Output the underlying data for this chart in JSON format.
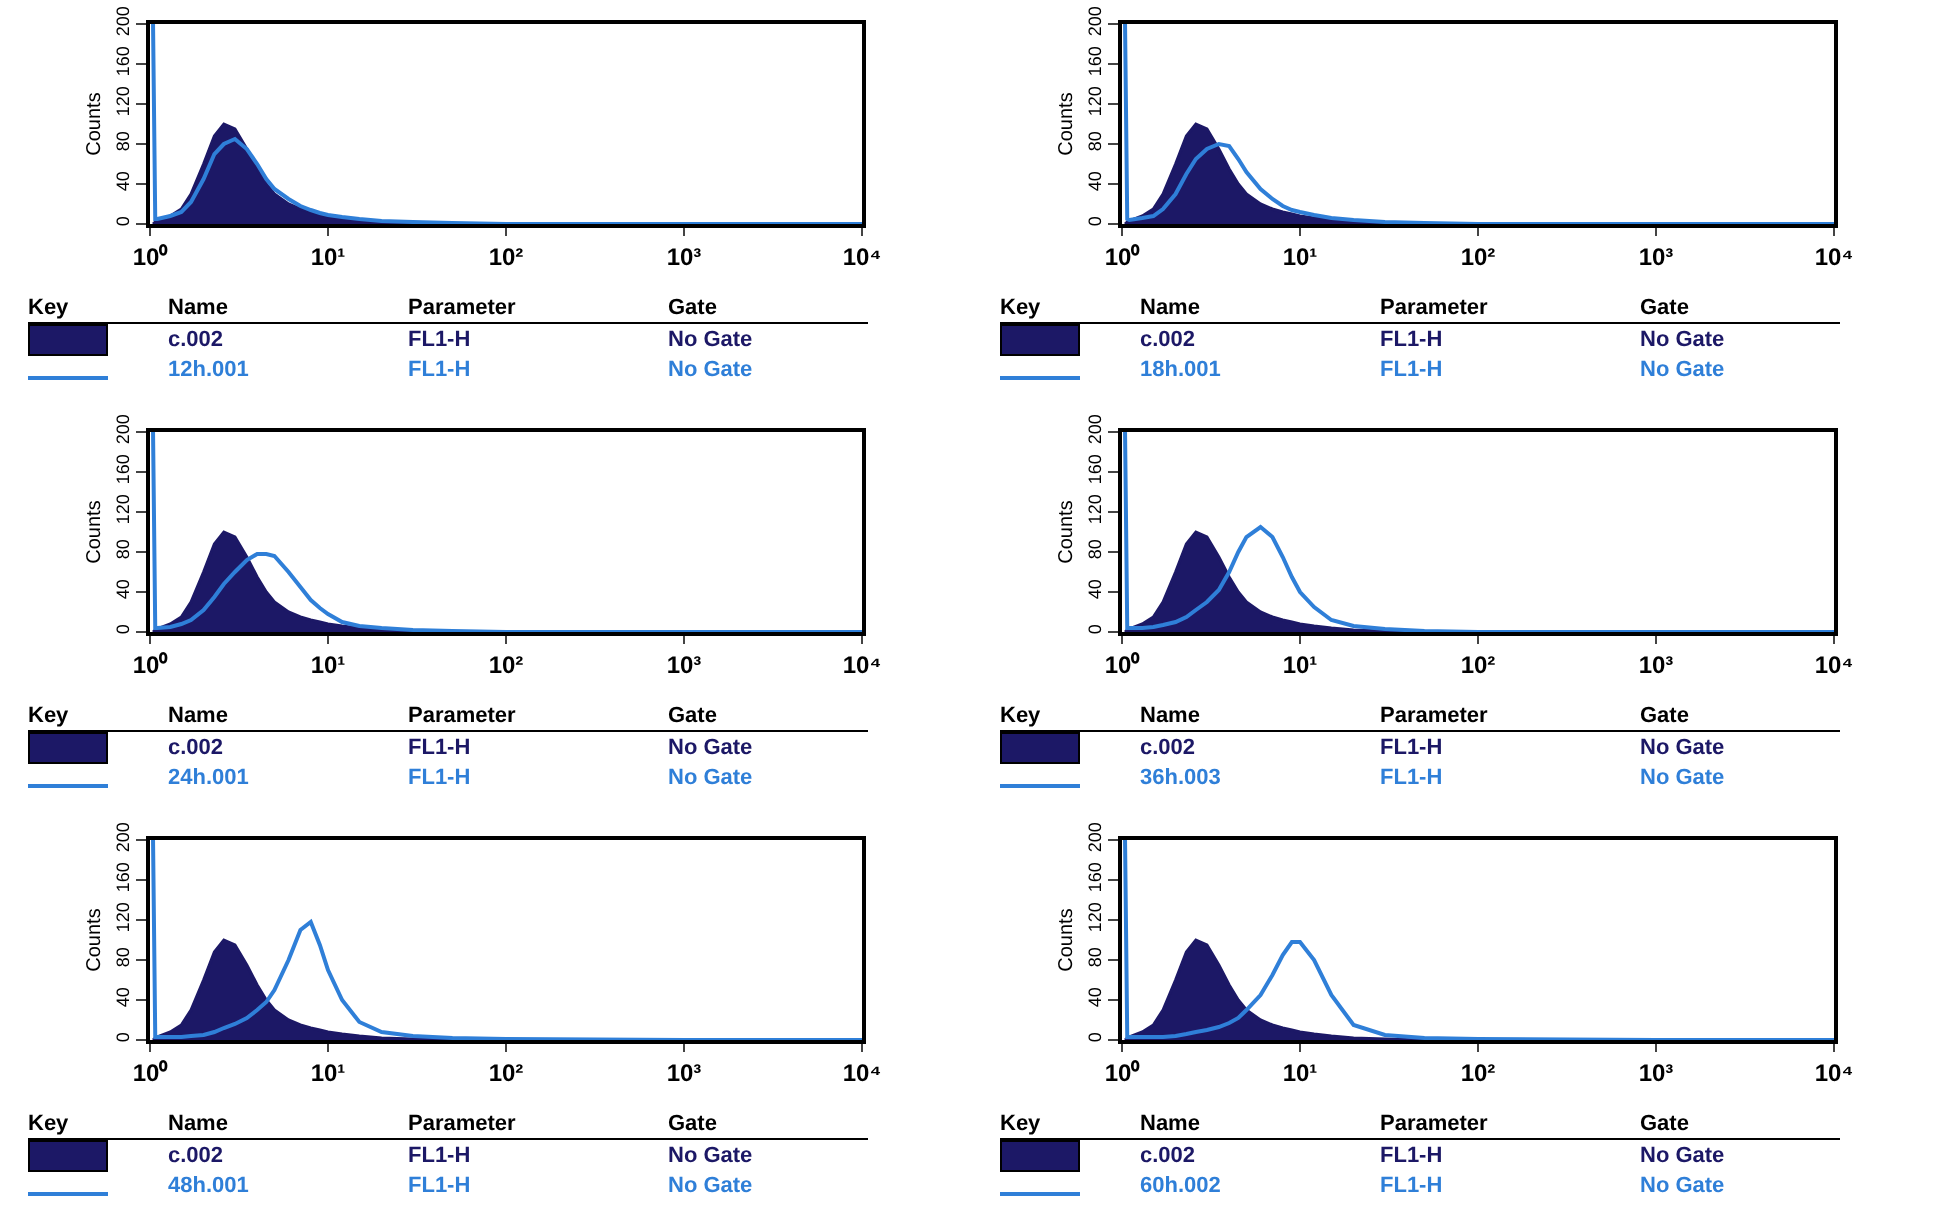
{
  "chart_data": [
    {
      "type": "area",
      "ylabel": "Counts",
      "xlim": [
        1,
        10000
      ],
      "ylim": [
        0,
        200
      ],
      "log": "x",
      "legend": "bottom",
      "grid": false,
      "line_style": "solid",
      "xticks": [
        {
          "value": 1,
          "label": "10⁰"
        },
        {
          "value": 10,
          "label": "10¹"
        },
        {
          "value": 100,
          "label": "10²"
        },
        {
          "value": 1000,
          "label": "10³"
        },
        {
          "value": 10000,
          "label": "10⁴"
        }
      ],
      "yticks": [
        0,
        40,
        80,
        120,
        160,
        200
      ],
      "annotations": [
        "Key",
        "Name",
        "Parameter",
        "Gate",
        "FL1-H",
        "No Gate",
        "FL1-H",
        "No Gate"
      ],
      "x": [
        1.04,
        1.07,
        1.1,
        1.3,
        1.5,
        1.7,
        2,
        2.3,
        2.6,
        3,
        3.5,
        4,
        4.5,
        5,
        6,
        7,
        8,
        9,
        10,
        12,
        15,
        20,
        30,
        50,
        100,
        1000,
        10000
      ],
      "series": [
        {
          "name": "c.002",
          "type": "area",
          "color": "#1c1866",
          "values": [
            0,
            2,
            3,
            8,
            15,
            30,
            60,
            88,
            100,
            95,
            75,
            55,
            40,
            30,
            20,
            15,
            12,
            10,
            8,
            6,
            4,
            2,
            1,
            0,
            0,
            0,
            0
          ]
        },
        {
          "name": "12h.001",
          "type": "line",
          "color": "#2f7fd8",
          "values": [
            200,
            5,
            5,
            8,
            12,
            22,
            45,
            70,
            80,
            85,
            75,
            60,
            45,
            35,
            25,
            18,
            14,
            11,
            9,
            7,
            5,
            3,
            2,
            1,
            0,
            0,
            0
          ]
        }
      ]
    },
    {
      "type": "area",
      "ylabel": "Counts",
      "xlim": [
        1,
        10000
      ],
      "ylim": [
        0,
        200
      ],
      "log": "x",
      "legend": "bottom",
      "grid": false,
      "line_style": "solid",
      "xticks": [
        {
          "value": 1,
          "label": "10⁰"
        },
        {
          "value": 10,
          "label": "10¹"
        },
        {
          "value": 100,
          "label": "10²"
        },
        {
          "value": 1000,
          "label": "10³"
        },
        {
          "value": 10000,
          "label": "10⁴"
        }
      ],
      "yticks": [
        0,
        40,
        80,
        120,
        160,
        200
      ],
      "annotations": [
        "Key",
        "Name",
        "Parameter",
        "Gate",
        "FL1-H",
        "No Gate",
        "FL1-H",
        "No Gate"
      ],
      "x": [
        1.04,
        1.07,
        1.1,
        1.3,
        1.5,
        1.7,
        2,
        2.3,
        2.6,
        3,
        3.5,
        4,
        4.5,
        5,
        6,
        7,
        8,
        9,
        10,
        12,
        15,
        20,
        30,
        50,
        100,
        1000,
        10000
      ],
      "series": [
        {
          "name": "c.002",
          "type": "area",
          "color": "#1c1866",
          "values": [
            0,
            2,
            3,
            8,
            15,
            30,
            60,
            88,
            100,
            95,
            75,
            55,
            40,
            30,
            20,
            15,
            12,
            10,
            8,
            6,
            4,
            2,
            1,
            0,
            0,
            0,
            0
          ]
        },
        {
          "name": "18h.001",
          "type": "line",
          "color": "#2f7fd8",
          "values": [
            200,
            5,
            4,
            6,
            8,
            15,
            30,
            50,
            65,
            75,
            80,
            78,
            65,
            52,
            35,
            25,
            18,
            14,
            12,
            9,
            6,
            4,
            2,
            1,
            0,
            0,
            0
          ]
        }
      ]
    },
    {
      "type": "area",
      "ylabel": "Counts",
      "xlim": [
        1,
        10000
      ],
      "ylim": [
        0,
        200
      ],
      "log": "x",
      "legend": "bottom",
      "grid": false,
      "line_style": "solid",
      "xticks": [
        {
          "value": 1,
          "label": "10⁰"
        },
        {
          "value": 10,
          "label": "10¹"
        },
        {
          "value": 100,
          "label": "10²"
        },
        {
          "value": 1000,
          "label": "10³"
        },
        {
          "value": 10000,
          "label": "10⁴"
        }
      ],
      "yticks": [
        0,
        40,
        80,
        120,
        160,
        200
      ],
      "annotations": [
        "Key",
        "Name",
        "Parameter",
        "Gate",
        "FL1-H",
        "No Gate",
        "FL1-H",
        "No Gate"
      ],
      "x": [
        1.04,
        1.07,
        1.1,
        1.3,
        1.5,
        1.7,
        2,
        2.3,
        2.6,
        3,
        3.5,
        4,
        4.5,
        5,
        6,
        7,
        8,
        9,
        10,
        12,
        15,
        20,
        30,
        50,
        100,
        1000,
        10000
      ],
      "series": [
        {
          "name": "c.002",
          "type": "area",
          "color": "#1c1866",
          "values": [
            0,
            2,
            3,
            8,
            15,
            30,
            60,
            88,
            100,
            95,
            75,
            55,
            40,
            30,
            20,
            15,
            12,
            10,
            8,
            6,
            4,
            2,
            1,
            0,
            0,
            0,
            0
          ]
        },
        {
          "name": "24h.001",
          "type": "line",
          "color": "#2f7fd8",
          "values": [
            200,
            4,
            4,
            5,
            8,
            12,
            22,
            35,
            48,
            60,
            72,
            78,
            78,
            76,
            60,
            45,
            32,
            24,
            18,
            10,
            6,
            4,
            2,
            1,
            0,
            0,
            0
          ]
        }
      ]
    },
    {
      "type": "area",
      "ylabel": "Counts",
      "xlim": [
        1,
        10000
      ],
      "ylim": [
        0,
        200
      ],
      "log": "x",
      "legend": "bottom",
      "grid": false,
      "line_style": "solid",
      "xticks": [
        {
          "value": 1,
          "label": "10⁰"
        },
        {
          "value": 10,
          "label": "10¹"
        },
        {
          "value": 100,
          "label": "10²"
        },
        {
          "value": 1000,
          "label": "10³"
        },
        {
          "value": 10000,
          "label": "10⁴"
        }
      ],
      "yticks": [
        0,
        40,
        80,
        120,
        160,
        200
      ],
      "annotations": [
        "Key",
        "Name",
        "Parameter",
        "Gate",
        "FL1-H",
        "No Gate",
        "FL1-H",
        "No Gate"
      ],
      "x": [
        1.04,
        1.07,
        1.1,
        1.3,
        1.5,
        1.7,
        2,
        2.3,
        2.6,
        3,
        3.5,
        4,
        4.5,
        5,
        6,
        7,
        8,
        9,
        10,
        12,
        15,
        20,
        30,
        50,
        100,
        1000,
        10000
      ],
      "series": [
        {
          "name": "c.002",
          "type": "area",
          "color": "#1c1866",
          "values": [
            0,
            2,
            3,
            8,
            15,
            30,
            60,
            88,
            100,
            95,
            75,
            55,
            40,
            30,
            20,
            15,
            12,
            10,
            8,
            6,
            4,
            2,
            1,
            0,
            0,
            0,
            0
          ]
        },
        {
          "name": "36h.003",
          "type": "line",
          "color": "#2f7fd8",
          "values": [
            200,
            4,
            4,
            4,
            5,
            7,
            10,
            15,
            22,
            30,
            42,
            60,
            80,
            95,
            105,
            95,
            75,
            55,
            40,
            25,
            12,
            6,
            3,
            1,
            0,
            0,
            0
          ]
        }
      ]
    },
    {
      "type": "area",
      "ylabel": "Counts",
      "xlim": [
        1,
        10000
      ],
      "ylim": [
        0,
        200
      ],
      "log": "x",
      "legend": "bottom",
      "grid": false,
      "line_style": "solid",
      "xticks": [
        {
          "value": 1,
          "label": "10⁰"
        },
        {
          "value": 10,
          "label": "10¹"
        },
        {
          "value": 100,
          "label": "10²"
        },
        {
          "value": 1000,
          "label": "10³"
        },
        {
          "value": 10000,
          "label": "10⁴"
        }
      ],
      "yticks": [
        0,
        40,
        80,
        120,
        160,
        200
      ],
      "annotations": [
        "Key",
        "Name",
        "Parameter",
        "Gate",
        "FL1-H",
        "No Gate",
        "FL1-H",
        "No Gate"
      ],
      "x": [
        1.04,
        1.07,
        1.1,
        1.3,
        1.5,
        1.7,
        2,
        2.3,
        2.6,
        3,
        3.5,
        4,
        4.5,
        5,
        6,
        7,
        8,
        9,
        10,
        12,
        15,
        20,
        30,
        50,
        100,
        1000,
        10000
      ],
      "series": [
        {
          "name": "c.002",
          "type": "area",
          "color": "#1c1866",
          "values": [
            0,
            2,
            3,
            8,
            15,
            30,
            60,
            88,
            100,
            95,
            75,
            55,
            40,
            30,
            20,
            15,
            12,
            10,
            8,
            6,
            4,
            2,
            1,
            0,
            0,
            0,
            0
          ]
        },
        {
          "name": "48h.001",
          "type": "line",
          "color": "#2f7fd8",
          "values": [
            200,
            3,
            3,
            3,
            3,
            4,
            5,
            8,
            12,
            16,
            22,
            30,
            38,
            50,
            80,
            110,
            118,
            95,
            70,
            40,
            18,
            8,
            4,
            2,
            1,
            0,
            0
          ]
        }
      ]
    },
    {
      "type": "area",
      "ylabel": "Counts",
      "xlim": [
        1,
        10000
      ],
      "ylim": [
        0,
        200
      ],
      "log": "x",
      "legend": "bottom",
      "grid": false,
      "line_style": "solid",
      "xticks": [
        {
          "value": 1,
          "label": "10⁰"
        },
        {
          "value": 10,
          "label": "10¹"
        },
        {
          "value": 100,
          "label": "10²"
        },
        {
          "value": 1000,
          "label": "10³"
        },
        {
          "value": 10000,
          "label": "10⁴"
        }
      ],
      "yticks": [
        0,
        40,
        80,
        120,
        160,
        200
      ],
      "annotations": [
        "Key",
        "Name",
        "Parameter",
        "Gate",
        "FL1-H",
        "No Gate",
        "FL1-H",
        "No Gate"
      ],
      "x": [
        1.04,
        1.07,
        1.1,
        1.3,
        1.5,
        1.7,
        2,
        2.3,
        2.6,
        3,
        3.5,
        4,
        4.5,
        5,
        6,
        7,
        8,
        9,
        10,
        12,
        15,
        20,
        30,
        50,
        100,
        1000,
        10000
      ],
      "series": [
        {
          "name": "c.002",
          "type": "area",
          "color": "#1c1866",
          "values": [
            0,
            2,
            3,
            8,
            15,
            30,
            60,
            88,
            100,
            95,
            75,
            55,
            40,
            30,
            20,
            15,
            12,
            10,
            8,
            6,
            4,
            2,
            1,
            0,
            0,
            0,
            0
          ]
        },
        {
          "name": "60h.002",
          "type": "line",
          "color": "#2f7fd8",
          "values": [
            200,
            3,
            3,
            3,
            3,
            3,
            4,
            6,
            8,
            10,
            13,
            17,
            22,
            30,
            45,
            65,
            85,
            98,
            98,
            80,
            45,
            15,
            5,
            2,
            1,
            0,
            0
          ]
        }
      ]
    }
  ]
}
